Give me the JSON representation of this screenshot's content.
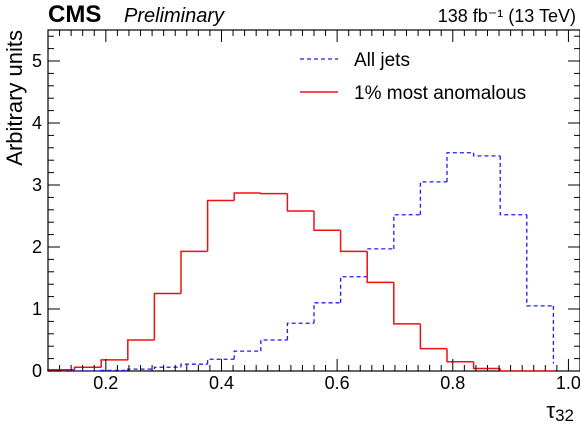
{
  "header": {
    "experiment": "CMS",
    "status": "Preliminary",
    "luminosity": "138 fb⁻¹ (13 TeV)"
  },
  "chart_data": {
    "type": "step-histogram",
    "xlabel": "τ",
    "xlabel_subscript": "32",
    "ylabel": "Arbitrary units",
    "xlim": [
      0.1,
      1.02
    ],
    "ylim": [
      0,
      5.5
    ],
    "xticks": [
      0.2,
      0.4,
      0.6,
      0.8,
      1.0
    ],
    "xtick_labels": [
      "0.2",
      "0.4",
      "0.6",
      "0.8",
      "1.0"
    ],
    "yticks": [
      0,
      1,
      2,
      3,
      4,
      5
    ],
    "ytick_labels": [
      "0",
      "1",
      "2",
      "3",
      "4",
      "5"
    ],
    "bin_edges": [
      0.1,
      0.146,
      0.192,
      0.238,
      0.284,
      0.33,
      0.376,
      0.422,
      0.468,
      0.514,
      0.56,
      0.606,
      0.652,
      0.698,
      0.744,
      0.79,
      0.836,
      0.882,
      0.928,
      0.974
    ],
    "legend_position": "top-right",
    "grid": false,
    "series": [
      {
        "name": "All jets",
        "style": "dashed",
        "color": "#1a1aff",
        "values": [
          0.0,
          0.0,
          0.01,
          0.03,
          0.06,
          0.11,
          0.19,
          0.32,
          0.5,
          0.77,
          1.1,
          1.52,
          1.97,
          2.52,
          3.05,
          3.52,
          3.47,
          2.52,
          1.05,
          0.12
        ]
      },
      {
        "name": "1% most anomalous",
        "style": "solid",
        "color": "#ee1111",
        "values": [
          0.02,
          0.06,
          0.18,
          0.5,
          1.25,
          1.93,
          2.75,
          2.87,
          2.86,
          2.58,
          2.27,
          1.93,
          1.43,
          0.76,
          0.36,
          0.15,
          0.04,
          0.0,
          0.0
        ]
      }
    ]
  }
}
